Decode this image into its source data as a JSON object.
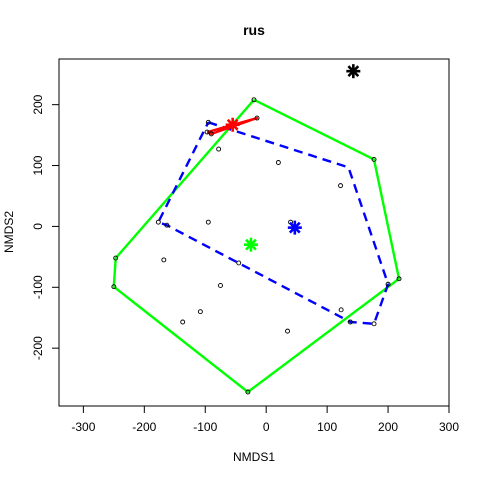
{
  "chart_data": {
    "type": "scatter",
    "title": "rus",
    "xlabel": "NMDS1",
    "ylabel": "NMDS2",
    "xlim": [
      -340,
      300
    ],
    "ylim": [
      -295,
      275
    ],
    "xticks": [
      -300,
      -200,
      -100,
      0,
      100,
      200,
      300
    ],
    "yticks": [
      -200,
      -100,
      0,
      100,
      200
    ],
    "points": [
      {
        "x": -95,
        "y": 171
      },
      {
        "x": -78,
        "y": 127
      },
      {
        "x": 20,
        "y": 105
      },
      {
        "x": 122,
        "y": 67
      },
      {
        "x": -95,
        "y": 7
      },
      {
        "x": 40,
        "y": 7
      },
      {
        "x": -163,
        "y": 2
      },
      {
        "x": -168,
        "y": -55
      },
      {
        "x": -45,
        "y": -60
      },
      {
        "x": -75,
        "y": -97
      },
      {
        "x": -108,
        "y": -140
      },
      {
        "x": -137,
        "y": -157
      },
      {
        "x": 35,
        "y": -172
      },
      {
        "x": 123,
        "y": -137
      },
      {
        "x": 138,
        "y": -157
      },
      {
        "x": 177,
        "y": -160
      },
      {
        "x": 200,
        "y": -95
      },
      {
        "x": 218,
        "y": -86
      },
      {
        "x": 177,
        "y": 110
      },
      {
        "x": -20,
        "y": 208
      },
      {
        "x": -15,
        "y": 178
      },
      {
        "x": -90,
        "y": 152
      },
      {
        "x": -97,
        "y": 155
      },
      {
        "x": -177,
        "y": 7
      },
      {
        "x": -247,
        "y": -52
      },
      {
        "x": -250,
        "y": -99
      },
      {
        "x": -30,
        "y": -272
      }
    ],
    "series": [
      {
        "kind": "hull",
        "color": "#00ff00",
        "dash": "solid",
        "points": [
          [
            -20,
            208
          ],
          [
            177,
            110
          ],
          [
            218,
            -86
          ],
          [
            -30,
            -272
          ],
          [
            -250,
            -99
          ],
          [
            -247,
            -52
          ],
          [
            -20,
            208
          ]
        ]
      },
      {
        "kind": "hull",
        "color": "#0000ff",
        "dash": "dashed",
        "points": [
          [
            -95,
            171
          ],
          [
            135,
            97
          ],
          [
            200,
            -95
          ],
          [
            177,
            -160
          ],
          [
            138,
            -157
          ],
          [
            -163,
            2
          ],
          [
            -177,
            7
          ],
          [
            -95,
            171
          ]
        ]
      },
      {
        "kind": "hull",
        "color": "#ff0000",
        "dash": "solid",
        "points": [
          [
            -97,
            155
          ],
          [
            -15,
            178
          ],
          [
            -90,
            152
          ],
          [
            -97,
            155
          ]
        ]
      }
    ],
    "centroids": [
      {
        "x": 143,
        "y": 255,
        "color": "#000000"
      },
      {
        "x": -55,
        "y": 167,
        "color": "#ff0000"
      },
      {
        "x": 47,
        "y": -2,
        "color": "#0000ff"
      },
      {
        "x": -25,
        "y": -30,
        "color": "#00ff00"
      }
    ]
  }
}
